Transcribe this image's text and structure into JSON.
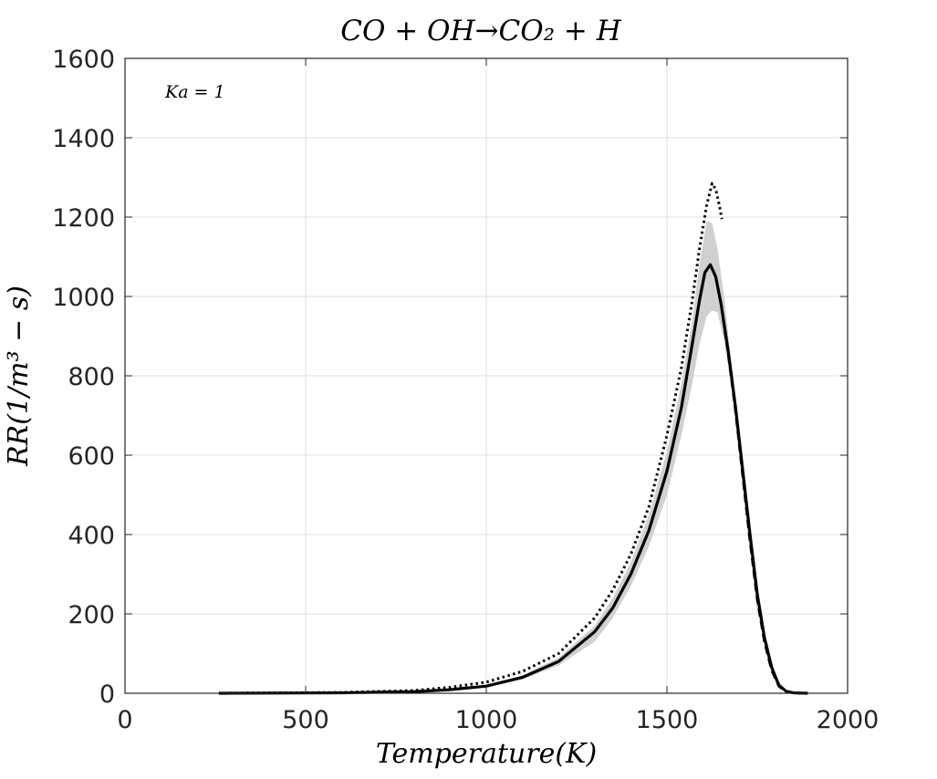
{
  "chart_data": {
    "type": "line",
    "title": "CO + OH→CO₂ + H",
    "xlabel": "Temperature(K)",
    "ylabel": "RR(1/m³ − s)",
    "xlim": [
      0,
      2000
    ],
    "ylim": [
      0,
      1600
    ],
    "xticks": [
      0,
      500,
      1000,
      1500,
      2000
    ],
    "yticks": [
      0,
      200,
      400,
      600,
      800,
      1000,
      1200,
      1400,
      1600
    ],
    "grid": true,
    "annotation": "Ka = 1",
    "band": {
      "x": [
        260,
        600,
        900,
        1000,
        1100,
        1200,
        1300,
        1350,
        1400,
        1450,
        1500,
        1540,
        1570,
        1590,
        1610,
        1625,
        1640,
        1660,
        1680,
        1700,
        1720,
        1750,
        1780,
        1800,
        1830,
        1850,
        1880
      ],
      "upper": [
        0,
        2,
        8,
        20,
        45,
        90,
        170,
        240,
        330,
        450,
        610,
        780,
        940,
        1080,
        1190,
        1185,
        1120,
        990,
        810,
        620,
        450,
        230,
        90,
        40,
        8,
        2,
        0
      ],
      "lower": [
        0,
        1,
        6,
        15,
        35,
        70,
        130,
        190,
        270,
        370,
        500,
        650,
        780,
        880,
        950,
        965,
        960,
        880,
        760,
        600,
        430,
        210,
        80,
        30,
        5,
        1,
        0
      ],
      "color": "#d0d0d0"
    },
    "series": [
      {
        "style": "solid",
        "color": "#000000",
        "x": [
          260,
          600,
          800,
          900,
          1000,
          1100,
          1200,
          1300,
          1350,
          1400,
          1450,
          1500,
          1540,
          1570,
          1590,
          1605,
          1620,
          1635,
          1650,
          1670,
          1690,
          1710,
          1730,
          1750,
          1770,
          1790,
          1810,
          1830,
          1850,
          1890
        ],
        "y": [
          0,
          1,
          4,
          9,
          18,
          40,
          80,
          155,
          215,
          300,
          410,
          560,
          720,
          880,
          990,
          1060,
          1080,
          1050,
          980,
          860,
          720,
          560,
          400,
          250,
          140,
          65,
          20,
          5,
          1,
          0
        ]
      },
      {
        "style": "dotted",
        "color": "#000000",
        "x": [
          260,
          600,
          800,
          900,
          1000,
          1100,
          1200,
          1300,
          1350,
          1400,
          1450,
          1500,
          1540,
          1570,
          1590,
          1610,
          1625,
          1635,
          1645,
          1652
        ],
        "y": [
          0,
          2,
          7,
          15,
          28,
          55,
          100,
          190,
          260,
          350,
          470,
          650,
          820,
          990,
          1120,
          1230,
          1285,
          1270,
          1230,
          1195
        ]
      },
      {
        "style": "dashed",
        "color": "#000000",
        "x": [
          1650,
          1670,
          1690,
          1710,
          1730,
          1750,
          1770,
          1790,
          1810,
          1830,
          1850,
          1870
        ],
        "y": [
          980,
          855,
          712,
          548,
          385,
          238,
          130,
          58,
          18,
          4,
          1,
          0
        ]
      }
    ]
  }
}
